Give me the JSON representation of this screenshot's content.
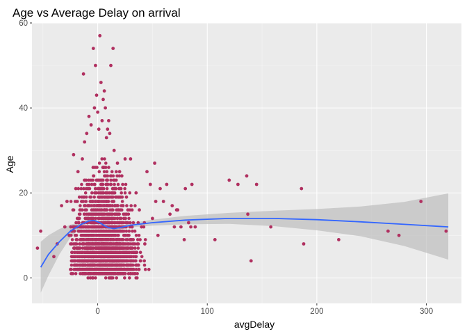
{
  "chart_data": {
    "type": "scatter",
    "title": "Age vs Average Delay on arrival",
    "xlabel": "avgDelay",
    "ylabel": "Age",
    "xlim": [
      -60,
      332
    ],
    "ylim": [
      -6,
      60
    ],
    "x_ticks": [
      0,
      100,
      200,
      300
    ],
    "y_ticks": [
      0,
      20,
      40,
      60
    ],
    "x_tick_labels": [
      "0",
      "100",
      "200",
      "300"
    ],
    "y_tick_labels": [
      "0",
      "20",
      "40",
      "60"
    ],
    "grid": true,
    "legend": "none",
    "colors": {
      "panel": "#ebebeb",
      "grid_major": "#ffffff",
      "point": "#b03060",
      "smooth_line": "#3366ff",
      "ribbon": "#bdbdbd"
    },
    "dense_cloud": {
      "x_range": [
        -25,
        52
      ],
      "y_range": [
        0,
        29
      ],
      "center_x": 5,
      "spread_x": 14
    },
    "points": [
      [
        -55,
        7
      ],
      [
        -52,
        11
      ],
      [
        -40,
        5
      ],
      [
        -37,
        8
      ],
      [
        -33,
        17
      ],
      [
        -30,
        12
      ],
      [
        -28,
        18
      ],
      [
        -26,
        10
      ],
      [
        -22,
        29
      ],
      [
        -21,
        12
      ],
      [
        -20,
        21
      ],
      [
        -18,
        25
      ],
      [
        -16,
        9
      ],
      [
        -14,
        28
      ],
      [
        -12,
        32
      ],
      [
        -13,
        48
      ],
      [
        -10,
        34
      ],
      [
        -8,
        38
      ],
      [
        -6,
        36
      ],
      [
        -4,
        54
      ],
      [
        -3,
        40
      ],
      [
        -2,
        50
      ],
      [
        -1,
        43
      ],
      [
        0,
        39
      ],
      [
        1,
        35
      ],
      [
        2,
        57
      ],
      [
        3,
        46
      ],
      [
        4,
        37
      ],
      [
        5,
        42
      ],
      [
        6,
        44
      ],
      [
        7,
        40
      ],
      [
        8,
        33
      ],
      [
        9,
        35
      ],
      [
        10,
        37
      ],
      [
        11,
        34
      ],
      [
        12,
        50
      ],
      [
        14,
        54
      ],
      [
        15,
        30
      ],
      [
        18,
        27
      ],
      [
        20,
        25
      ],
      [
        22,
        24
      ],
      [
        25,
        28
      ],
      [
        30,
        28
      ],
      [
        35,
        20
      ],
      [
        38,
        16
      ],
      [
        40,
        12
      ],
      [
        43,
        8
      ],
      [
        45,
        25
      ],
      [
        48,
        22
      ],
      [
        50,
        14
      ],
      [
        52,
        27
      ],
      [
        53,
        18
      ],
      [
        55,
        10
      ],
      [
        57,
        21
      ],
      [
        60,
        18
      ],
      [
        63,
        22
      ],
      [
        66,
        15
      ],
      [
        68,
        17
      ],
      [
        70,
        12
      ],
      [
        72,
        16
      ],
      [
        73,
        16
      ],
      [
        76,
        12
      ],
      [
        79,
        9
      ],
      [
        80,
        21
      ],
      [
        83,
        13
      ],
      [
        85,
        12
      ],
      [
        86,
        22
      ],
      [
        89,
        12
      ],
      [
        107,
        9
      ],
      [
        120,
        23
      ],
      [
        128,
        22
      ],
      [
        136,
        24
      ],
      [
        137,
        15
      ],
      [
        140,
        4
      ],
      [
        145,
        22
      ],
      [
        158,
        12
      ],
      [
        186,
        21
      ],
      [
        188,
        8
      ],
      [
        220,
        9
      ],
      [
        265,
        11
      ],
      [
        275,
        10
      ],
      [
        295,
        18
      ],
      [
        318,
        11
      ]
    ],
    "smooth_fit": [
      [
        -52,
        2.5
      ],
      [
        -45,
        5.5
      ],
      [
        -35,
        8.5
      ],
      [
        -25,
        11.0
      ],
      [
        -15,
        12.6
      ],
      [
        -8,
        13.4
      ],
      [
        -3,
        13.5
      ],
      [
        2,
        13.0
      ],
      [
        6,
        12.3
      ],
      [
        10,
        11.8
      ],
      [
        15,
        11.6
      ],
      [
        20,
        11.8
      ],
      [
        30,
        12.4
      ],
      [
        50,
        13.0
      ],
      [
        80,
        13.6
      ],
      [
        120,
        14.0
      ],
      [
        160,
        14.0
      ],
      [
        200,
        13.7
      ],
      [
        240,
        13.2
      ],
      [
        280,
        12.6
      ],
      [
        320,
        12.0
      ]
    ],
    "ci_band": [
      [
        -52,
        -3.5,
        8.5
      ],
      [
        -45,
        0.5,
        10.0
      ],
      [
        -35,
        5.5,
        11.5
      ],
      [
        -25,
        9.5,
        12.5
      ],
      [
        -15,
        12.0,
        13.2
      ],
      [
        -8,
        13.0,
        13.8
      ],
      [
        -3,
        13.1,
        13.9
      ],
      [
        2,
        12.7,
        13.3
      ],
      [
        6,
        12.0,
        12.6
      ],
      [
        10,
        11.5,
        12.1
      ],
      [
        15,
        11.3,
        11.9
      ],
      [
        20,
        11.4,
        12.2
      ],
      [
        30,
        11.9,
        12.9
      ],
      [
        50,
        12.3,
        13.7
      ],
      [
        80,
        12.6,
        14.6
      ],
      [
        120,
        12.7,
        15.3
      ],
      [
        160,
        12.2,
        15.8
      ],
      [
        200,
        11.2,
        16.2
      ],
      [
        240,
        9.8,
        16.8
      ],
      [
        280,
        7.5,
        17.9
      ],
      [
        320,
        4.3,
        19.9
      ]
    ]
  }
}
